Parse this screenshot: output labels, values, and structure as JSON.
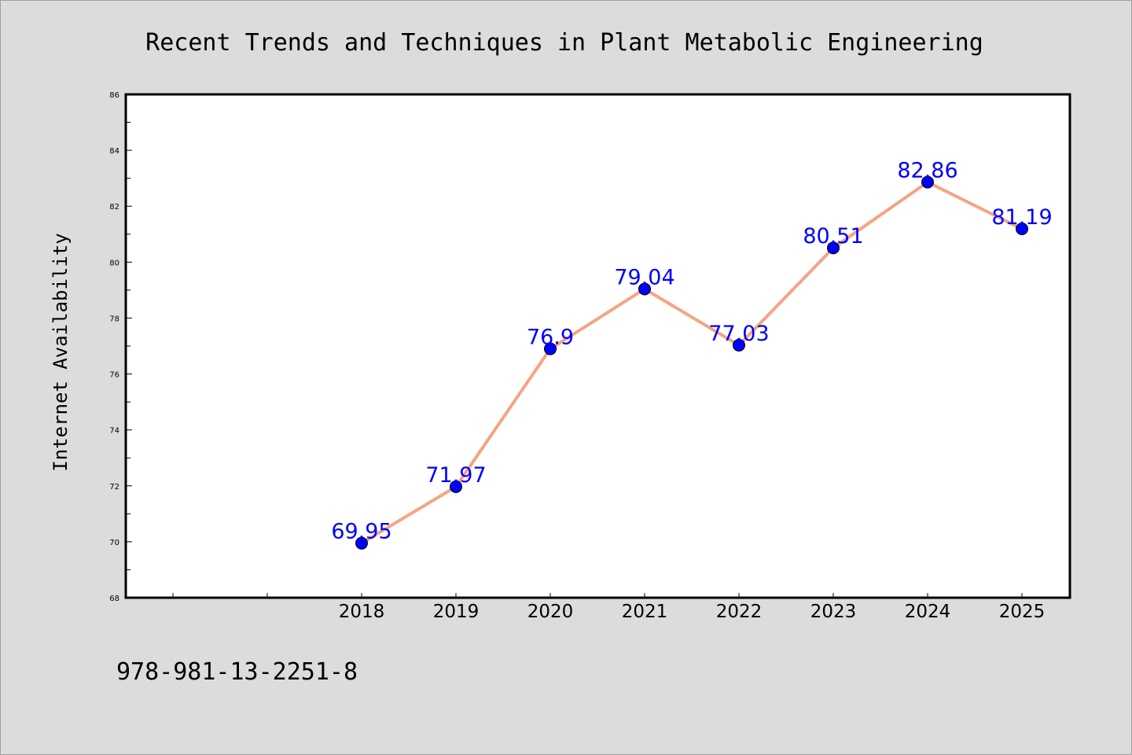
{
  "chart_data": {
    "type": "line",
    "title": "Recent Trends and Techniques in Plant Metabolic Engineering",
    "xlabel": "",
    "ylabel": "Internet Availability",
    "x": [
      "2018",
      "2019",
      "2020",
      "2021",
      "2022",
      "2023",
      "2024",
      "2025"
    ],
    "x_ticks_unlabeled_before": 2,
    "series": [
      {
        "name": "",
        "values": [
          69.95,
          71.97,
          76.9,
          79.04,
          77.03,
          80.51,
          82.86,
          81.19
        ],
        "data_labels": [
          "69.95",
          "71.97",
          "76.9",
          "79.04",
          "77.03",
          "80.51",
          "82.86",
          "81.19"
        ]
      }
    ],
    "ylim": [
      68,
      86
    ],
    "yticks": [
      "68",
      "70",
      "72",
      "74",
      "76",
      "78",
      "80",
      "82",
      "84",
      "86"
    ],
    "grid": false,
    "legend": "none",
    "colors": {
      "background": "#dcdcdc",
      "plot_background": "#ffffff",
      "line": "#f4a582",
      "marker": "#0000ff",
      "data_label": "#0000ff"
    }
  },
  "footer": {
    "isbn": "978-981-13-2251-8"
  }
}
